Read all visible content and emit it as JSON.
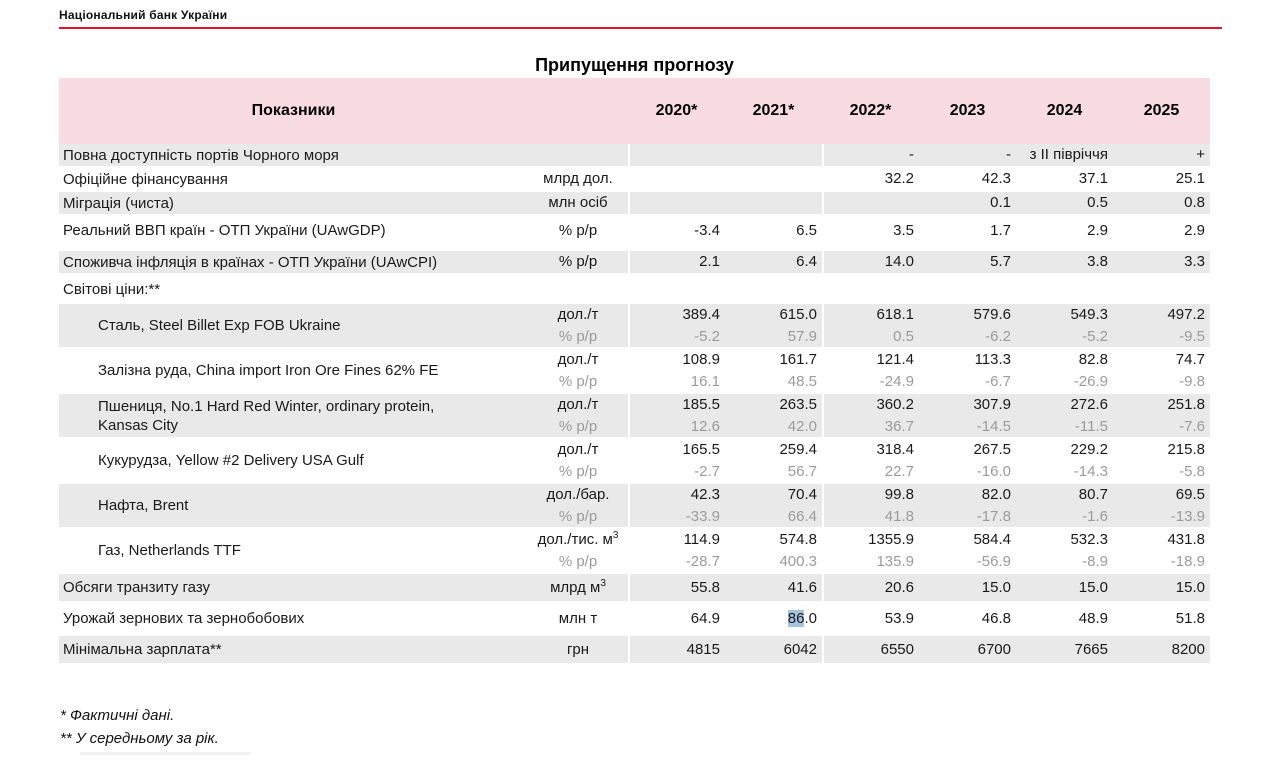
{
  "page": {
    "bank_name": "Національний банк України",
    "title": "Припущення прогнозу",
    "footnote1": "* Фактичні дані.",
    "footnote2": "** У середньому за рік."
  },
  "colors": {
    "brand_red": "#e8112d",
    "header_pink": "#f8dce1",
    "row_gray": "#e9e9e9",
    "sub_value_gray": "#9b9b9b",
    "selection_blue": "#a3c4df"
  },
  "table": {
    "header": {
      "indicator_label": "Показники",
      "years": [
        "2020*",
        "2021*",
        "2022*",
        "2023",
        "2024",
        "2025"
      ]
    },
    "rows": [
      {
        "kind": "plain",
        "shade": "gray",
        "name": "Повна доступність портів Чорного моря",
        "unit": "",
        "values": [
          "",
          "",
          "-",
          "-",
          "з ІІ півріччя",
          "+"
        ]
      },
      {
        "kind": "plain",
        "shade": "white",
        "name": "Офіційне фінансування",
        "unit": "млрд дол.",
        "values": [
          "",
          "",
          "32.2",
          "42.3",
          "37.1",
          "25.1"
        ]
      },
      {
        "kind": "plain",
        "shade": "gray",
        "name": "Міграція (чиста)",
        "unit": "млн осіб",
        "values": [
          "",
          "",
          "",
          "0.1",
          "0.5",
          "0.8"
        ]
      },
      {
        "kind": "tall",
        "shade": "white",
        "name": "Реальний ВВП країн - ОТП України (UAwGDP)",
        "unit": "% р/р",
        "values": [
          "-3.4",
          "6.5",
          "3.5",
          "1.7",
          "2.9",
          "2.9"
        ]
      },
      {
        "kind": "tallgap",
        "shade": "gray",
        "name": "Споживча інфляція в країнах - ОТП України (UAwCPI)",
        "unit": "% р/р",
        "values": [
          "2.1",
          "6.4",
          "14.0",
          "5.7",
          "3.8",
          "3.3"
        ]
      },
      {
        "kind": "section",
        "shade": "white",
        "name": "Світові ціни:**",
        "unit": "",
        "values": [
          "",
          "",
          "",
          "",
          "",
          ""
        ]
      },
      {
        "kind": "double",
        "shade": "gray",
        "indent": true,
        "name": "Сталь, Steel Billet Exp FOB Ukraine",
        "unit": "дол./т",
        "sub_unit": "% р/р",
        "values": [
          "389.4",
          "615.0",
          "618.1",
          "579.6",
          "549.3",
          "497.2"
        ],
        "sub_values": [
          "-5.2",
          "57.9",
          "0.5",
          "-6.2",
          "-5.2",
          "-9.5"
        ]
      },
      {
        "kind": "double",
        "shade": "white",
        "indent": true,
        "name": "Залізна руда, China import Iron Ore Fines 62% FE",
        "unit": "дол./т",
        "sub_unit": "% р/р",
        "values": [
          "108.9",
          "161.7",
          "121.4",
          "113.3",
          "82.8",
          "74.7"
        ],
        "sub_values": [
          "16.1",
          "48.5",
          "-24.9",
          "-6.7",
          "-26.9",
          "-9.8"
        ]
      },
      {
        "kind": "double",
        "shade": "gray",
        "indent": true,
        "name": "Пшениця, No.1 Hard Red Winter, ordinary protein,",
        "name_line2": "Kansas City",
        "unit": "дол./т",
        "sub_unit": "% р/р",
        "values": [
          "185.5",
          "263.5",
          "360.2",
          "307.9",
          "272.6",
          "251.8"
        ],
        "sub_values": [
          "12.6",
          "42.0",
          "36.7",
          "-14.5",
          "-11.5",
          "-7.6"
        ]
      },
      {
        "kind": "double",
        "shade": "white",
        "indent": true,
        "name": "Кукурудза, Yellow #2 Delivery USA Gulf",
        "unit": "дол./т",
        "sub_unit": "% р/р",
        "values": [
          "165.5",
          "259.4",
          "318.4",
          "267.5",
          "229.2",
          "215.8"
        ],
        "sub_values": [
          "-2.7",
          "56.7",
          "22.7",
          "-16.0",
          "-14.3",
          "-5.8"
        ]
      },
      {
        "kind": "double",
        "shade": "gray",
        "indent": true,
        "name": "Нафта, Brent",
        "unit": "дол./бар.",
        "sub_unit": "% р/р",
        "values": [
          "42.3",
          "70.4",
          "99.8",
          "82.0",
          "80.7",
          "69.5"
        ],
        "sub_values": [
          "-33.9",
          "66.4",
          "41.8",
          "-17.8",
          "-1.6",
          "-13.9"
        ]
      },
      {
        "kind": "double",
        "shade": "white",
        "indent": true,
        "name": "Газ, Netherlands TTF",
        "unit": "дол./тис. м",
        "unit_sup": "3",
        "sub_unit": "% р/р",
        "values": [
          "114.9",
          "574.8",
          "1355.9",
          "584.4",
          "532.3",
          "431.8"
        ],
        "sub_values": [
          "-28.7",
          "400.3",
          "135.9",
          "-56.9",
          "-8.9",
          "-18.9"
        ]
      },
      {
        "kind": "bottom",
        "shade": "gray",
        "name": "Обсяги транзиту газу",
        "unit": "млрд м",
        "unit_sup": "3",
        "values": [
          "55.8",
          "41.6",
          "20.6",
          "15.0",
          "15.0",
          "15.0"
        ]
      },
      {
        "kind": "bottom",
        "shade": "white",
        "name": "Урожай зернових та зернобобових",
        "unit": "млн т",
        "values": [
          "64.9",
          "86.0",
          "53.9",
          "46.8",
          "48.9",
          "51.8"
        ],
        "highlight": {
          "col": 1,
          "selected": "86",
          "after": ".0"
        }
      },
      {
        "kind": "bottom",
        "shade": "gray",
        "name": "Мінімальна зарплата**",
        "unit": "грн",
        "values": [
          "4815",
          "6042",
          "6550",
          "6700",
          "7665",
          "8200"
        ]
      }
    ]
  }
}
